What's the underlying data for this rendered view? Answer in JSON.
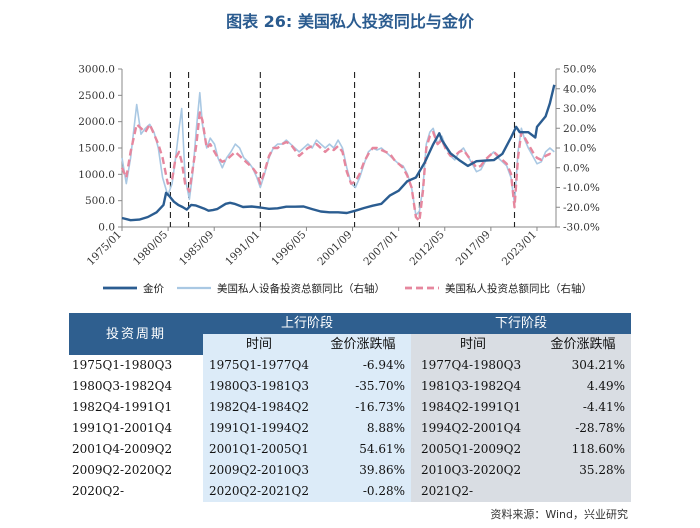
{
  "title": "图表 26: 美国私人投资同比与金价",
  "chart_data": {
    "type": "line",
    "left_axis": {
      "ticks": [
        "0.0",
        "500.0",
        "1000.0",
        "1500.0",
        "2000.0",
        "2500.0",
        "3000.0"
      ],
      "ylim": [
        0,
        3000
      ]
    },
    "right_axis": {
      "ticks": [
        "-30.0%",
        "-20.0%",
        "-10.0%",
        "0.0%",
        "10.0%",
        "20.0%",
        "30.0%",
        "40.0%",
        "50.0%"
      ],
      "ylim": [
        -30,
        50
      ]
    },
    "x_tick_labels": [
      "1975/01",
      "1980/05",
      "1985/09",
      "1991/01",
      "1996/05",
      "2001/09",
      "2007/01",
      "2012/05",
      "2017/09",
      "2023/01"
    ],
    "x_range": [
      1975.0,
      2025.2
    ],
    "vertical_markers": [
      1980.6,
      1982.7,
      1991.0,
      2001.9,
      2009.4,
      2020.4
    ],
    "series": [
      {
        "name": "金价",
        "axis": "left",
        "color": "#2b5d91",
        "points": [
          [
            1975.0,
            170
          ],
          [
            1976.0,
            130
          ],
          [
            1977.0,
            140
          ],
          [
            1978.0,
            190
          ],
          [
            1979.0,
            280
          ],
          [
            1979.8,
            420
          ],
          [
            1980.1,
            650
          ],
          [
            1980.4,
            600
          ],
          [
            1981.0,
            480
          ],
          [
            1981.5,
            420
          ],
          [
            1982.0,
            380
          ],
          [
            1982.5,
            330
          ],
          [
            1983.0,
            420
          ],
          [
            1983.5,
            410
          ],
          [
            1984.0,
            380
          ],
          [
            1984.5,
            350
          ],
          [
            1985.0,
            310
          ],
          [
            1985.5,
            320
          ],
          [
            1986.0,
            340
          ],
          [
            1987.0,
            440
          ],
          [
            1987.5,
            460
          ],
          [
            1988.0,
            440
          ],
          [
            1989.0,
            380
          ],
          [
            1990.0,
            390
          ],
          [
            1991.0,
            370
          ],
          [
            1992.0,
            345
          ],
          [
            1993.0,
            355
          ],
          [
            1994.0,
            385
          ],
          [
            1995.0,
            385
          ],
          [
            1996.0,
            390
          ],
          [
            1997.0,
            340
          ],
          [
            1998.0,
            295
          ],
          [
            1999.0,
            280
          ],
          [
            2000.0,
            280
          ],
          [
            2001.0,
            265
          ],
          [
            2002.0,
            310
          ],
          [
            2003.0,
            360
          ],
          [
            2004.0,
            405
          ],
          [
            2005.0,
            440
          ],
          [
            2006.0,
            600
          ],
          [
            2007.0,
            690
          ],
          [
            2008.0,
            870
          ],
          [
            2009.0,
            940
          ],
          [
            2010.0,
            1220
          ],
          [
            2011.0,
            1570
          ],
          [
            2011.7,
            1780
          ],
          [
            2012.0,
            1650
          ],
          [
            2013.0,
            1400
          ],
          [
            2014.0,
            1270
          ],
          [
            2015.0,
            1160
          ],
          [
            2016.0,
            1250
          ],
          [
            2017.0,
            1260
          ],
          [
            2018.0,
            1270
          ],
          [
            2019.0,
            1390
          ],
          [
            2020.0,
            1700
          ],
          [
            2020.6,
            1900
          ],
          [
            2021.0,
            1800
          ],
          [
            2022.0,
            1800
          ],
          [
            2022.8,
            1700
          ],
          [
            2023.0,
            1900
          ],
          [
            2024.0,
            2100
          ],
          [
            2024.5,
            2350
          ],
          [
            2025.0,
            2700
          ]
        ]
      },
      {
        "name": "美国私人设备投资总额同比（右轴）",
        "axis": "right",
        "color": "#a9c8e3",
        "points": [
          [
            1975.0,
            5
          ],
          [
            1975.5,
            -8
          ],
          [
            1976.0,
            5
          ],
          [
            1976.7,
            32
          ],
          [
            1977.2,
            17
          ],
          [
            1977.7,
            20
          ],
          [
            1978.2,
            22
          ],
          [
            1978.7,
            18
          ],
          [
            1979.2,
            10
          ],
          [
            1979.7,
            -5
          ],
          [
            1980.3,
            -14
          ],
          [
            1980.8,
            -8
          ],
          [
            1981.2,
            5
          ],
          [
            1981.6,
            20
          ],
          [
            1981.9,
            30
          ],
          [
            1982.3,
            -5
          ],
          [
            1982.8,
            -16
          ],
          [
            1983.2,
            -2
          ],
          [
            1983.6,
            20
          ],
          [
            1984.0,
            38
          ],
          [
            1984.3,
            22
          ],
          [
            1984.8,
            10
          ],
          [
            1985.2,
            15
          ],
          [
            1985.7,
            12
          ],
          [
            1986.1,
            5
          ],
          [
            1986.6,
            0
          ],
          [
            1987.1,
            5
          ],
          [
            1987.6,
            8
          ],
          [
            1988.1,
            12
          ],
          [
            1988.6,
            10
          ],
          [
            1989.1,
            5
          ],
          [
            1989.6,
            3
          ],
          [
            1990.1,
            0
          ],
          [
            1990.6,
            -5
          ],
          [
            1991.0,
            -10
          ],
          [
            1991.5,
            -3
          ],
          [
            1992.0,
            5
          ],
          [
            1992.5,
            10
          ],
          [
            1993.0,
            12
          ],
          [
            1993.5,
            12
          ],
          [
            1994.0,
            14
          ],
          [
            1994.5,
            12
          ],
          [
            1995.0,
            10
          ],
          [
            1995.5,
            8
          ],
          [
            1996.0,
            10
          ],
          [
            1996.5,
            12
          ],
          [
            1997.0,
            10
          ],
          [
            1997.5,
            14
          ],
          [
            1998.0,
            12
          ],
          [
            1998.5,
            10
          ],
          [
            1999.0,
            12
          ],
          [
            1999.5,
            10
          ],
          [
            2000.0,
            14
          ],
          [
            2000.5,
            10
          ],
          [
            2001.0,
            0
          ],
          [
            2001.5,
            -8
          ],
          [
            2002.0,
            -10
          ],
          [
            2002.5,
            -5
          ],
          [
            2003.0,
            2
          ],
          [
            2003.5,
            8
          ],
          [
            2004.0,
            10
          ],
          [
            2004.5,
            9
          ],
          [
            2005.0,
            10
          ],
          [
            2005.5,
            8
          ],
          [
            2006.0,
            6
          ],
          [
            2006.5,
            4
          ],
          [
            2007.0,
            2
          ],
          [
            2007.5,
            1
          ],
          [
            2008.0,
            -3
          ],
          [
            2008.5,
            -10
          ],
          [
            2009.0,
            -24
          ],
          [
            2009.4,
            -22
          ],
          [
            2009.8,
            -10
          ],
          [
            2010.2,
            12
          ],
          [
            2010.6,
            18
          ],
          [
            2011.0,
            20
          ],
          [
            2011.5,
            12
          ],
          [
            2012.0,
            16
          ],
          [
            2012.5,
            10
          ],
          [
            2013.0,
            6
          ],
          [
            2013.5,
            4
          ],
          [
            2014.0,
            8
          ],
          [
            2014.5,
            10
          ],
          [
            2015.0,
            6
          ],
          [
            2015.5,
            2
          ],
          [
            2016.0,
            -2
          ],
          [
            2016.5,
            -1
          ],
          [
            2017.0,
            3
          ],
          [
            2017.5,
            6
          ],
          [
            2018.0,
            8
          ],
          [
            2018.5,
            5
          ],
          [
            2019.0,
            3
          ],
          [
            2019.5,
            1
          ],
          [
            2020.0,
            -5
          ],
          [
            2020.4,
            -18
          ],
          [
            2020.8,
            8
          ],
          [
            2021.2,
            20
          ],
          [
            2021.6,
            14
          ],
          [
            2022.0,
            10
          ],
          [
            2022.5,
            6
          ],
          [
            2023.0,
            2
          ],
          [
            2023.5,
            3
          ],
          [
            2024.0,
            8
          ],
          [
            2024.5,
            10
          ],
          [
            2025.0,
            8
          ]
        ]
      },
      {
        "name": "美国私人投资总额同比（右轴）",
        "axis": "right",
        "color": "#e6879e",
        "dashed": true,
        "points": [
          [
            1975.0,
            0
          ],
          [
            1975.5,
            -5
          ],
          [
            1976.0,
            8
          ],
          [
            1976.7,
            22
          ],
          [
            1977.2,
            20
          ],
          [
            1977.7,
            18
          ],
          [
            1978.2,
            22
          ],
          [
            1978.7,
            17
          ],
          [
            1979.2,
            12
          ],
          [
            1979.7,
            5
          ],
          [
            1980.3,
            -8
          ],
          [
            1980.8,
            -6
          ],
          [
            1981.2,
            5
          ],
          [
            1981.6,
            8
          ],
          [
            1981.9,
            3
          ],
          [
            1982.3,
            -8
          ],
          [
            1982.8,
            -12
          ],
          [
            1983.2,
            0
          ],
          [
            1983.6,
            12
          ],
          [
            1984.0,
            28
          ],
          [
            1984.3,
            24
          ],
          [
            1984.8,
            10
          ],
          [
            1985.2,
            12
          ],
          [
            1985.7,
            8
          ],
          [
            1986.1,
            5
          ],
          [
            1986.6,
            3
          ],
          [
            1987.1,
            4
          ],
          [
            1987.6,
            6
          ],
          [
            1988.1,
            8
          ],
          [
            1988.6,
            6
          ],
          [
            1989.1,
            4
          ],
          [
            1989.6,
            2
          ],
          [
            1990.1,
            0
          ],
          [
            1990.6,
            -3
          ],
          [
            1991.0,
            -8
          ],
          [
            1991.5,
            -2
          ],
          [
            1992.0,
            6
          ],
          [
            1992.5,
            10
          ],
          [
            1993.0,
            10
          ],
          [
            1993.5,
            12
          ],
          [
            1994.0,
            13
          ],
          [
            1994.5,
            12
          ],
          [
            1995.0,
            9
          ],
          [
            1995.5,
            6
          ],
          [
            1996.0,
            8
          ],
          [
            1996.5,
            10
          ],
          [
            1997.0,
            11
          ],
          [
            1997.5,
            12
          ],
          [
            1998.0,
            10
          ],
          [
            1998.5,
            8
          ],
          [
            1999.0,
            10
          ],
          [
            1999.5,
            9
          ],
          [
            2000.0,
            11
          ],
          [
            2000.5,
            8
          ],
          [
            2001.0,
            -2
          ],
          [
            2001.5,
            -8
          ],
          [
            2002.0,
            -7
          ],
          [
            2002.5,
            -3
          ],
          [
            2003.0,
            3
          ],
          [
            2003.5,
            7
          ],
          [
            2004.0,
            10
          ],
          [
            2004.5,
            10
          ],
          [
            2005.0,
            9
          ],
          [
            2005.5,
            8
          ],
          [
            2006.0,
            7
          ],
          [
            2006.5,
            4
          ],
          [
            2007.0,
            2
          ],
          [
            2007.5,
            0
          ],
          [
            2008.0,
            -4
          ],
          [
            2008.5,
            -10
          ],
          [
            2009.0,
            -25
          ],
          [
            2009.4,
            -27
          ],
          [
            2009.8,
            -12
          ],
          [
            2010.2,
            10
          ],
          [
            2010.6,
            16
          ],
          [
            2011.0,
            18
          ],
          [
            2011.5,
            12
          ],
          [
            2012.0,
            14
          ],
          [
            2012.5,
            9
          ],
          [
            2013.0,
            6
          ],
          [
            2013.5,
            6
          ],
          [
            2014.0,
            8
          ],
          [
            2014.5,
            9
          ],
          [
            2015.0,
            6
          ],
          [
            2015.5,
            3
          ],
          [
            2016.0,
            0
          ],
          [
            2016.5,
            1
          ],
          [
            2017.0,
            4
          ],
          [
            2017.5,
            6
          ],
          [
            2018.0,
            8
          ],
          [
            2018.5,
            6
          ],
          [
            2019.0,
            4
          ],
          [
            2019.5,
            2
          ],
          [
            2020.0,
            -3
          ],
          [
            2020.4,
            -20
          ],
          [
            2020.8,
            5
          ],
          [
            2021.2,
            18
          ],
          [
            2021.6,
            15
          ],
          [
            2022.0,
            12
          ],
          [
            2022.5,
            8
          ],
          [
            2023.0,
            5
          ],
          [
            2023.5,
            4
          ],
          [
            2024.0,
            6
          ],
          [
            2024.5,
            7
          ],
          [
            2025.0,
            6
          ]
        ]
      }
    ]
  },
  "legend": [
    {
      "label": "金价",
      "style": "solid-dark",
      "color": "#2b5d91"
    },
    {
      "label": "美国私人设备投资总额同比（右轴）",
      "style": "solid-light",
      "color": "#a9c8e3"
    },
    {
      "label": "美国私人投资总额同比（右轴）",
      "style": "dashed-pink",
      "color": "#e6879e"
    }
  ],
  "table": {
    "header": {
      "period": "投资周期",
      "up": "上行阶段",
      "down": "下行阶段",
      "time": "时间",
      "change": "金价涨跌幅"
    },
    "rows": [
      {
        "period": "1975Q1-1980Q3",
        "up_time": "1975Q1-1977Q4",
        "up_change": "-6.94%",
        "down_time": "1977Q4-1980Q3",
        "down_change": "304.21%"
      },
      {
        "period": "1980Q3-1982Q4",
        "up_time": "1980Q3-1981Q3",
        "up_change": "-35.70%",
        "down_time": "1981Q3-1982Q4",
        "down_change": "4.49%"
      },
      {
        "period": "1982Q4-1991Q1",
        "up_time": "1982Q4-1984Q2",
        "up_change": "-16.73%",
        "down_time": "1984Q2-1991Q1",
        "down_change": "-4.41%"
      },
      {
        "period": "1991Q1-2001Q4",
        "up_time": "1991Q1-1994Q2",
        "up_change": "8.88%",
        "down_time": "1994Q2-2001Q4",
        "down_change": "-28.78%"
      },
      {
        "period": "2001Q4-2009Q2",
        "up_time": "2001Q1-2005Q1",
        "up_change": "54.61%",
        "down_time": "2005Q1-2009Q2",
        "down_change": "118.60%"
      },
      {
        "period": "2009Q2-2020Q2",
        "up_time": "2009Q2-2010Q3",
        "up_change": "39.86%",
        "down_time": "2010Q3-2020Q2",
        "down_change": "35.28%"
      },
      {
        "period": "2020Q2-",
        "up_time": "2020Q2-2021Q2",
        "up_change": "-0.28%",
        "down_time": "2021Q2-",
        "down_change": ""
      }
    ]
  },
  "source": "资料来源：Wind，兴业研究"
}
